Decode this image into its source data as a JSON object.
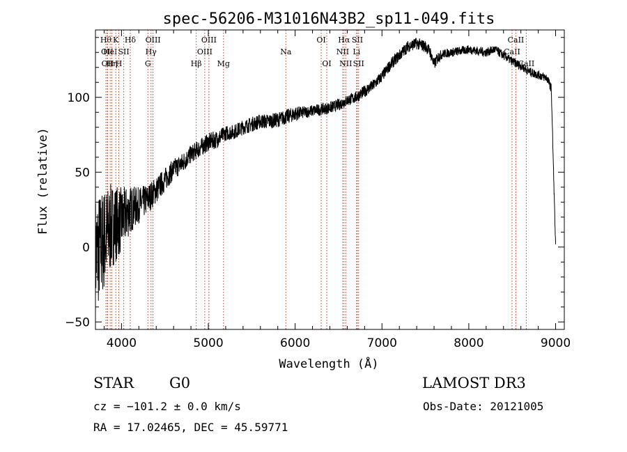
{
  "chart_data": {
    "type": "line",
    "title": "spec-56206-M31016N43B2_sp11-049.fits",
    "xlabel": "Wavelength (Å)",
    "ylabel": "Flux (relative)",
    "xlim": [
      3700,
      9100
    ],
    "ylim": [
      -55,
      145
    ],
    "xticks": [
      4000,
      5000,
      6000,
      7000,
      8000,
      9000
    ],
    "yticks": [
      -50,
      0,
      50,
      100
    ],
    "grid": false,
    "legend": "none",
    "series": [
      {
        "name": "spectrum",
        "x": [
          3700,
          3800,
          3900,
          4000,
          4100,
          4200,
          4300,
          4400,
          4500,
          4600,
          4700,
          4800,
          4900,
          5000,
          5100,
          5200,
          5300,
          5400,
          5500,
          5600,
          5700,
          5800,
          5900,
          6000,
          6100,
          6200,
          6300,
          6400,
          6500,
          6600,
          6700,
          6800,
          6900,
          7000,
          7100,
          7200,
          7300,
          7400,
          7500,
          7550,
          7600,
          7650,
          7700,
          7800,
          7900,
          8000,
          8100,
          8200,
          8300,
          8400,
          8500,
          8600,
          8700,
          8800,
          8900,
          8950,
          9000
        ],
        "values": [
          -5,
          5,
          15,
          18,
          25,
          28,
          32,
          38,
          45,
          52,
          56,
          62,
          66,
          70,
          72,
          76,
          77,
          80,
          82,
          84,
          84,
          85,
          87,
          89,
          90,
          91,
          92,
          93,
          95,
          98,
          100,
          104,
          108,
          114,
          122,
          128,
          134,
          136,
          134,
          131,
          122,
          127,
          129,
          130,
          131,
          132,
          131,
          130,
          132,
          128,
          124,
          121,
          117,
          115,
          113,
          106,
          0
        ],
        "noise": [
          40,
          35,
          28,
          22,
          16,
          12,
          10,
          9,
          8,
          7,
          7,
          6,
          6,
          6,
          6,
          5,
          5,
          5,
          5,
          5,
          5,
          5,
          5,
          5,
          4,
          4,
          4,
          4,
          4,
          4,
          4,
          4,
          4,
          4,
          4,
          4,
          4,
          4,
          4,
          4,
          4,
          4,
          3,
          3,
          3,
          3,
          3,
          3,
          3,
          3,
          3,
          3,
          3,
          3,
          3,
          3,
          3
        ]
      }
    ],
    "line_markers": [
      {
        "x": 3820,
        "label": "Hθ",
        "row": 0
      },
      {
        "x": 3835,
        "label": "OII",
        "row": 1
      },
      {
        "x": 3840,
        "label": "OII",
        "row": 2
      },
      {
        "x": 3870,
        "label": "HeI",
        "row": 1
      },
      {
        "x": 3889,
        "label": "Hη",
        "row": 2
      },
      {
        "x": 3934,
        "label": "K",
        "row": 0
      },
      {
        "x": 3969,
        "label": "H",
        "row": 2
      },
      {
        "x": 4026,
        "label": "SII",
        "row": 1
      },
      {
        "x": 4101,
        "label": "Hδ",
        "row": 0
      },
      {
        "x": 4304,
        "label": "G",
        "row": 2
      },
      {
        "x": 4340,
        "label": "Hγ",
        "row": 1
      },
      {
        "x": 4363,
        "label": "OIII",
        "row": 0
      },
      {
        "x": 4861,
        "label": "Hβ",
        "row": 2
      },
      {
        "x": 4959,
        "label": "OIII",
        "row": 1
      },
      {
        "x": 5007,
        "label": "OIII",
        "row": 0
      },
      {
        "x": 5175,
        "label": "Mg",
        "row": 2
      },
      {
        "x": 5893,
        "label": "Na",
        "row": 1
      },
      {
        "x": 6300,
        "label": "OI",
        "row": 0
      },
      {
        "x": 6364,
        "label": "OI",
        "row": 2
      },
      {
        "x": 6548,
        "label": "NII",
        "row": 1
      },
      {
        "x": 6563,
        "label": "Hα",
        "row": 0
      },
      {
        "x": 6583,
        "label": "NII",
        "row": 2
      },
      {
        "x": 6707,
        "label": "Li",
        "row": 1
      },
      {
        "x": 6717,
        "label": "SII",
        "row": 0
      },
      {
        "x": 6731,
        "label": "SII",
        "row": 2
      },
      {
        "x": 8498,
        "label": "CaII",
        "row": 1
      },
      {
        "x": 8542,
        "label": "CaII",
        "row": 0
      },
      {
        "x": 8662,
        "label": "CaII",
        "row": 2
      }
    ]
  },
  "info": {
    "class": "STAR",
    "subclass": "G0",
    "survey": "LAMOST DR3",
    "cz": "cz = −101.2 ± 0.0 km/s",
    "obs_date": "Obs-Date: 20121005",
    "coords": "RA =  17.02465, DEC =  45.59771"
  }
}
